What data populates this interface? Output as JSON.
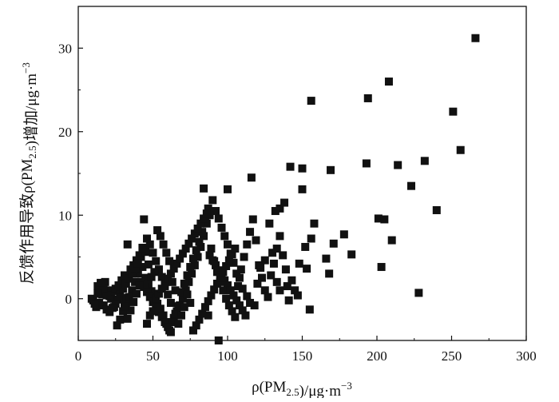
{
  "chart_data": {
    "type": "scatter",
    "title": "",
    "xlabel": "ρ(PM2.5)/μg·m−3",
    "ylabel": "反馈作用导致ρ(PM2.5)增加/μg·m−3",
    "xlim": [
      0,
      300
    ],
    "ylim": [
      -5,
      35
    ],
    "x_ticks": [
      0,
      50,
      100,
      150,
      200,
      250,
      300
    ],
    "y_ticks": [
      0,
      10,
      20,
      30
    ],
    "grid": false,
    "marker": "square",
    "marker_color": "#111111",
    "points": [
      [
        266,
        31.2
      ],
      [
        208,
        26.0
      ],
      [
        194,
        24.0
      ],
      [
        156,
        23.7
      ],
      [
        251,
        22.4
      ],
      [
        256,
        17.8
      ],
      [
        232,
        16.5
      ],
      [
        214,
        16.0
      ],
      [
        193,
        16.2
      ],
      [
        169,
        15.4
      ],
      [
        150,
        15.6
      ],
      [
        142,
        15.8
      ],
      [
        116,
        14.5
      ],
      [
        150,
        13.1
      ],
      [
        100,
        13.1
      ],
      [
        84,
        13.2
      ],
      [
        223,
        13.5
      ],
      [
        240,
        10.6
      ],
      [
        201,
        9.6
      ],
      [
        205,
        9.5
      ],
      [
        210,
        7.0
      ],
      [
        203,
        3.8
      ],
      [
        228,
        0.7
      ],
      [
        178,
        7.7
      ],
      [
        171,
        6.6
      ],
      [
        183,
        5.3
      ],
      [
        166,
        4.8
      ],
      [
        168,
        3.0
      ],
      [
        158,
        9.0
      ],
      [
        156,
        7.2
      ],
      [
        152,
        6.2
      ],
      [
        148,
        4.2
      ],
      [
        153,
        3.6
      ],
      [
        155,
        -1.3
      ],
      [
        141,
        -0.2
      ],
      [
        140,
        1.5
      ],
      [
        135,
        1.0
      ],
      [
        133,
        2.0
      ],
      [
        138,
        11.5
      ],
      [
        135,
        10.8
      ],
      [
        132,
        10.5
      ],
      [
        128,
        9.0
      ],
      [
        130,
        5.5
      ],
      [
        125,
        4.6
      ],
      [
        122,
        3.7
      ],
      [
        120,
        1.8
      ],
      [
        118,
        -0.8
      ],
      [
        115,
        -0.5
      ],
      [
        113,
        0.3
      ],
      [
        110,
        1.2
      ],
      [
        108,
        2.5
      ],
      [
        106,
        3.0
      ],
      [
        104,
        4.3
      ],
      [
        102,
        5.4
      ],
      [
        100,
        6.5
      ],
      [
        98,
        7.5
      ],
      [
        96,
        8.5
      ],
      [
        94,
        9.6
      ],
      [
        92,
        10.5
      ],
      [
        90,
        11.8
      ],
      [
        88,
        10.0
      ],
      [
        86,
        9.0
      ],
      [
        84,
        7.5
      ],
      [
        82,
        6.2
      ],
      [
        80,
        5.0
      ],
      [
        78,
        4.0
      ],
      [
        76,
        3.0
      ],
      [
        74,
        2.0
      ],
      [
        72,
        1.0
      ],
      [
        70,
        0.0
      ],
      [
        68,
        -0.8
      ],
      [
        66,
        -1.5
      ],
      [
        64,
        -2.3
      ],
      [
        62,
        -0.5
      ],
      [
        60,
        0.5
      ],
      [
        58,
        1.5
      ],
      [
        56,
        2.6
      ],
      [
        54,
        3.5
      ],
      [
        52,
        4.5
      ],
      [
        50,
        5.5
      ],
      [
        48,
        6.5
      ],
      [
        46,
        7.2
      ],
      [
        44,
        9.5
      ],
      [
        42,
        5.0
      ],
      [
        40,
        3.0
      ],
      [
        38,
        2.0
      ],
      [
        36,
        1.0
      ],
      [
        34,
        0.2
      ],
      [
        32,
        -0.7
      ],
      [
        30,
        -1.5
      ],
      [
        28,
        -2.5
      ],
      [
        26,
        -3.2
      ],
      [
        24,
        -1.0
      ],
      [
        22,
        0.0
      ],
      [
        20,
        1.0
      ],
      [
        18,
        2.0
      ],
      [
        16,
        0.5
      ],
      [
        14,
        -0.5
      ],
      [
        12,
        -1.0
      ],
      [
        10,
        -0.2
      ],
      [
        9,
        0.0
      ],
      [
        13,
        1.5
      ],
      [
        15,
        0.8
      ],
      [
        17,
        -0.8
      ],
      [
        19,
        -1.3
      ],
      [
        21,
        0.3
      ],
      [
        23,
        0.9
      ],
      [
        25,
        1.2
      ],
      [
        27,
        1.6
      ],
      [
        29,
        2.2
      ],
      [
        31,
        2.8
      ],
      [
        33,
        6.5
      ],
      [
        35,
        3.5
      ],
      [
        37,
        4.0
      ],
      [
        39,
        4.6
      ],
      [
        41,
        5.2
      ],
      [
        43,
        3.8
      ],
      [
        45,
        2.5
      ],
      [
        47,
        1.8
      ],
      [
        49,
        0.9
      ],
      [
        51,
        0.2
      ],
      [
        53,
        -0.6
      ],
      [
        55,
        -1.2
      ],
      [
        57,
        -2.0
      ],
      [
        59,
        -3.0
      ],
      [
        61,
        -3.8
      ],
      [
        63,
        -2.8
      ],
      [
        65,
        -1.8
      ],
      [
        67,
        -0.9
      ],
      [
        69,
        0.8
      ],
      [
        71,
        1.8
      ],
      [
        73,
        2.8
      ],
      [
        75,
        3.8
      ],
      [
        77,
        4.8
      ],
      [
        79,
        5.8
      ],
      [
        81,
        6.8
      ],
      [
        83,
        8.0
      ],
      [
        85,
        9.2
      ],
      [
        87,
        10.8
      ],
      [
        89,
        6.0
      ],
      [
        91,
        4.5
      ],
      [
        93,
        3.2
      ],
      [
        95,
        2.0
      ],
      [
        97,
        1.0
      ],
      [
        99,
        0.0
      ],
      [
        101,
        -0.8
      ],
      [
        103,
        -1.5
      ],
      [
        105,
        -2.2
      ],
      [
        107,
        1.5
      ],
      [
        109,
        3.5
      ],
      [
        111,
        5.0
      ],
      [
        113,
        6.5
      ],
      [
        115,
        8.0
      ],
      [
        117,
        9.5
      ],
      [
        119,
        7.0
      ],
      [
        121,
        4.0
      ],
      [
        123,
        2.5
      ],
      [
        125,
        1.0
      ],
      [
        127,
        0.2
      ],
      [
        129,
        2.8
      ],
      [
        131,
        4.2
      ],
      [
        133,
        6.0
      ],
      [
        135,
        7.5
      ],
      [
        137,
        5.2
      ],
      [
        139,
        3.5
      ],
      [
        143,
        2.2
      ],
      [
        145,
        1.0
      ],
      [
        147,
        0.4
      ],
      [
        28,
        0.5
      ],
      [
        30,
        1.2
      ],
      [
        32,
        1.8
      ],
      [
        34,
        2.4
      ],
      [
        36,
        3.0
      ],
      [
        38,
        3.6
      ],
      [
        40,
        4.2
      ],
      [
        42,
        2.0
      ],
      [
        44,
        1.4
      ],
      [
        46,
        0.8
      ],
      [
        48,
        0.2
      ],
      [
        50,
        -0.4
      ],
      [
        52,
        -1.0
      ],
      [
        54,
        -1.6
      ],
      [
        56,
        -2.2
      ],
      [
        58,
        -2.8
      ],
      [
        60,
        -3.4
      ],
      [
        62,
        -4.0
      ],
      [
        46,
        -3.0
      ],
      [
        48,
        -2.0
      ],
      [
        50,
        -1.5
      ],
      [
        52,
        0.0
      ],
      [
        54,
        0.6
      ],
      [
        56,
        1.2
      ],
      [
        58,
        1.8
      ],
      [
        60,
        2.4
      ],
      [
        62,
        3.0
      ],
      [
        64,
        3.6
      ],
      [
        66,
        4.2
      ],
      [
        68,
        4.8
      ],
      [
        70,
        5.4
      ],
      [
        72,
        6.0
      ],
      [
        74,
        6.6
      ],
      [
        76,
        7.2
      ],
      [
        78,
        7.8
      ],
      [
        80,
        8.4
      ],
      [
        82,
        9.0
      ],
      [
        84,
        9.6
      ],
      [
        86,
        10.2
      ],
      [
        88,
        5.2
      ],
      [
        90,
        4.6
      ],
      [
        92,
        4.0
      ],
      [
        94,
        3.4
      ],
      [
        96,
        2.8
      ],
      [
        98,
        2.2
      ],
      [
        100,
        1.6
      ],
      [
        102,
        1.0
      ],
      [
        104,
        0.4
      ],
      [
        106,
        -0.2
      ],
      [
        108,
        -0.8
      ],
      [
        110,
        -1.4
      ],
      [
        112,
        -2.0
      ],
      [
        77,
        -3.8
      ],
      [
        79,
        -3.2
      ],
      [
        81,
        -2.5
      ],
      [
        83,
        -1.8
      ],
      [
        85,
        -1.0
      ],
      [
        87,
        -0.3
      ],
      [
        89,
        0.4
      ],
      [
        91,
        1.1
      ],
      [
        93,
        1.8
      ],
      [
        95,
        2.5
      ],
      [
        97,
        3.2
      ],
      [
        99,
        3.9
      ],
      [
        101,
        4.6
      ],
      [
        103,
        5.3
      ],
      [
        105,
        6.0
      ],
      [
        94,
        -5.0
      ],
      [
        87,
        -2.0
      ],
      [
        75,
        -0.5
      ],
      [
        73,
        0.5
      ],
      [
        71,
        -1.0
      ],
      [
        69,
        -2.0
      ],
      [
        67,
        -3.0
      ],
      [
        65,
        1.0
      ],
      [
        63,
        2.0
      ],
      [
        61,
        4.5
      ],
      [
        59,
        5.5
      ],
      [
        57,
        6.5
      ],
      [
        55,
        7.5
      ],
      [
        53,
        8.2
      ],
      [
        51,
        3.2
      ],
      [
        49,
        2.6
      ],
      [
        47,
        4.1
      ],
      [
        45,
        5.6
      ],
      [
        43,
        6.1
      ],
      [
        41,
        1.6
      ],
      [
        39,
        0.6
      ],
      [
        37,
        -0.4
      ],
      [
        35,
        -1.4
      ],
      [
        33,
        -2.4
      ],
      [
        31,
        -0.9
      ],
      [
        29,
        0.1
      ],
      [
        27,
        -0.1
      ],
      [
        25,
        -0.6
      ],
      [
        23,
        -1.1
      ],
      [
        21,
        -1.6
      ],
      [
        19,
        0.4
      ],
      [
        17,
        1.2
      ],
      [
        15,
        1.9
      ],
      [
        13,
        0.6
      ],
      [
        11,
        -0.6
      ]
    ]
  }
}
